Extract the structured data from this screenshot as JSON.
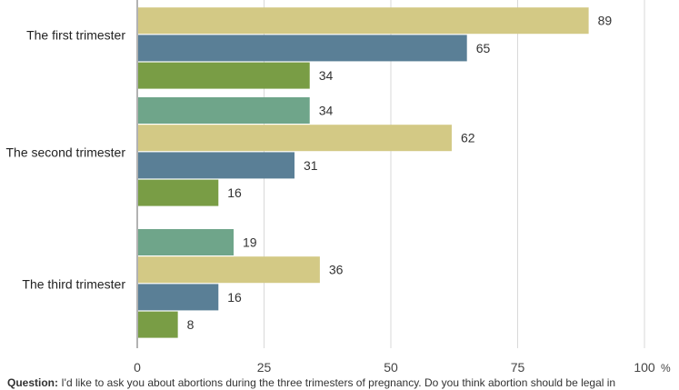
{
  "chart_data": {
    "type": "bar",
    "orientation": "horizontal",
    "categories": [
      "The first trimester",
      "The second trimester",
      "The third trimester"
    ],
    "series": [
      {
        "values": [
          null,
          34,
          19
        ],
        "color": "#6fa58a"
      },
      {
        "values": [
          89,
          62,
          36
        ],
        "color": "#d3c985"
      },
      {
        "values": [
          65,
          31,
          16
        ],
        "color": "#5a7f96"
      },
      {
        "values": [
          34,
          16,
          8
        ],
        "color": "#799d45"
      }
    ],
    "xlim": [
      0,
      100
    ],
    "xticks": [
      "0",
      "25",
      "50",
      "75",
      "100"
    ],
    "unit": "%",
    "grid": true,
    "legend": "none"
  },
  "footnote": {
    "label": "Question:",
    "text": "I'd like to ask you about abortions during the three trimesters of pregnancy. Do you think abortion should be legal in"
  }
}
